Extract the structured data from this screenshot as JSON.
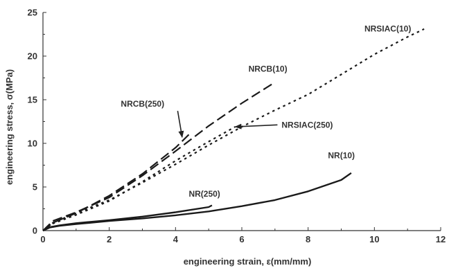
{
  "chart_data": {
    "type": "line",
    "title": "",
    "xlabel": "engineering strain, ε(mm/mm)",
    "ylabel": "engineering stress, σ(MPa)",
    "xlim": [
      0,
      12
    ],
    "ylim": [
      0,
      25
    ],
    "xticks": [
      "0",
      "2",
      "4",
      "6",
      "8",
      "10",
      "12"
    ],
    "yticks": [
      "0",
      "5",
      "10",
      "15",
      "20",
      "25"
    ],
    "grid": false,
    "legend": "none",
    "series": [
      {
        "name": "NRSIAC(10)",
        "style": "dotted",
        "x": [
          0,
          0.3,
          1,
          2,
          3,
          4,
          5,
          6,
          7,
          8,
          9,
          10,
          11,
          11.5
        ],
        "y": [
          0,
          0.9,
          2,
          3.5,
          5.5,
          7.6,
          9.8,
          11.9,
          13.8,
          15.6,
          17.9,
          20.2,
          22.2,
          23.1
        ]
      },
      {
        "name": "NRSIAC(250)",
        "style": "dotted",
        "x": [
          0,
          0.3,
          1,
          2,
          3,
          4,
          5,
          5.8
        ],
        "y": [
          0,
          0.8,
          1.8,
          3.4,
          5.6,
          8,
          10.2,
          11.9
        ]
      },
      {
        "name": "NRCB(10)",
        "style": "dashed",
        "x": [
          0,
          0.3,
          1,
          2,
          3,
          4,
          5,
          6,
          7
        ],
        "y": [
          0,
          1.1,
          2.1,
          3.8,
          6.3,
          9.1,
          12,
          14.6,
          17
        ]
      },
      {
        "name": "NRCB(250)",
        "style": "dashed",
        "x": [
          0,
          0.3,
          1,
          2,
          3,
          4,
          4.4
        ],
        "y": [
          0,
          0.9,
          2,
          4,
          6.5,
          9.5,
          11
        ]
      },
      {
        "name": "NR(10)",
        "style": "solid",
        "x": [
          0,
          0.2,
          0.5,
          1,
          2,
          3,
          4,
          5,
          6,
          7,
          8,
          9,
          9.3
        ],
        "y": [
          0,
          0.35,
          0.55,
          0.75,
          1.1,
          1.4,
          1.75,
          2.2,
          2.8,
          3.5,
          4.5,
          5.8,
          6.6
        ]
      },
      {
        "name": "NR(250)",
        "style": "solid",
        "x": [
          0,
          0.2,
          0.5,
          1,
          2,
          3,
          4,
          5,
          5.1
        ],
        "y": [
          0,
          0.4,
          0.6,
          0.85,
          1.2,
          1.6,
          2.1,
          2.7,
          2.9
        ]
      }
    ],
    "annotations": [
      {
        "label": "NRSIAC(10)",
        "x": 9.7,
        "y": 22.8
      },
      {
        "label": "NRCB(10)",
        "x": 6.2,
        "y": 18.2
      },
      {
        "label": "NRCB(250)",
        "x": 2.35,
        "y": 14.2,
        "arrow_to": [
          4.2,
          10.7
        ]
      },
      {
        "label": "NRSIAC(250)",
        "x": 7.2,
        "y": 11.8,
        "arrow_to": [
          5.8,
          11.9
        ]
      },
      {
        "label": "NR(10)",
        "x": 8.6,
        "y": 8.3
      },
      {
        "label": "NR(250)",
        "x": 4.4,
        "y": 3.9
      }
    ]
  }
}
